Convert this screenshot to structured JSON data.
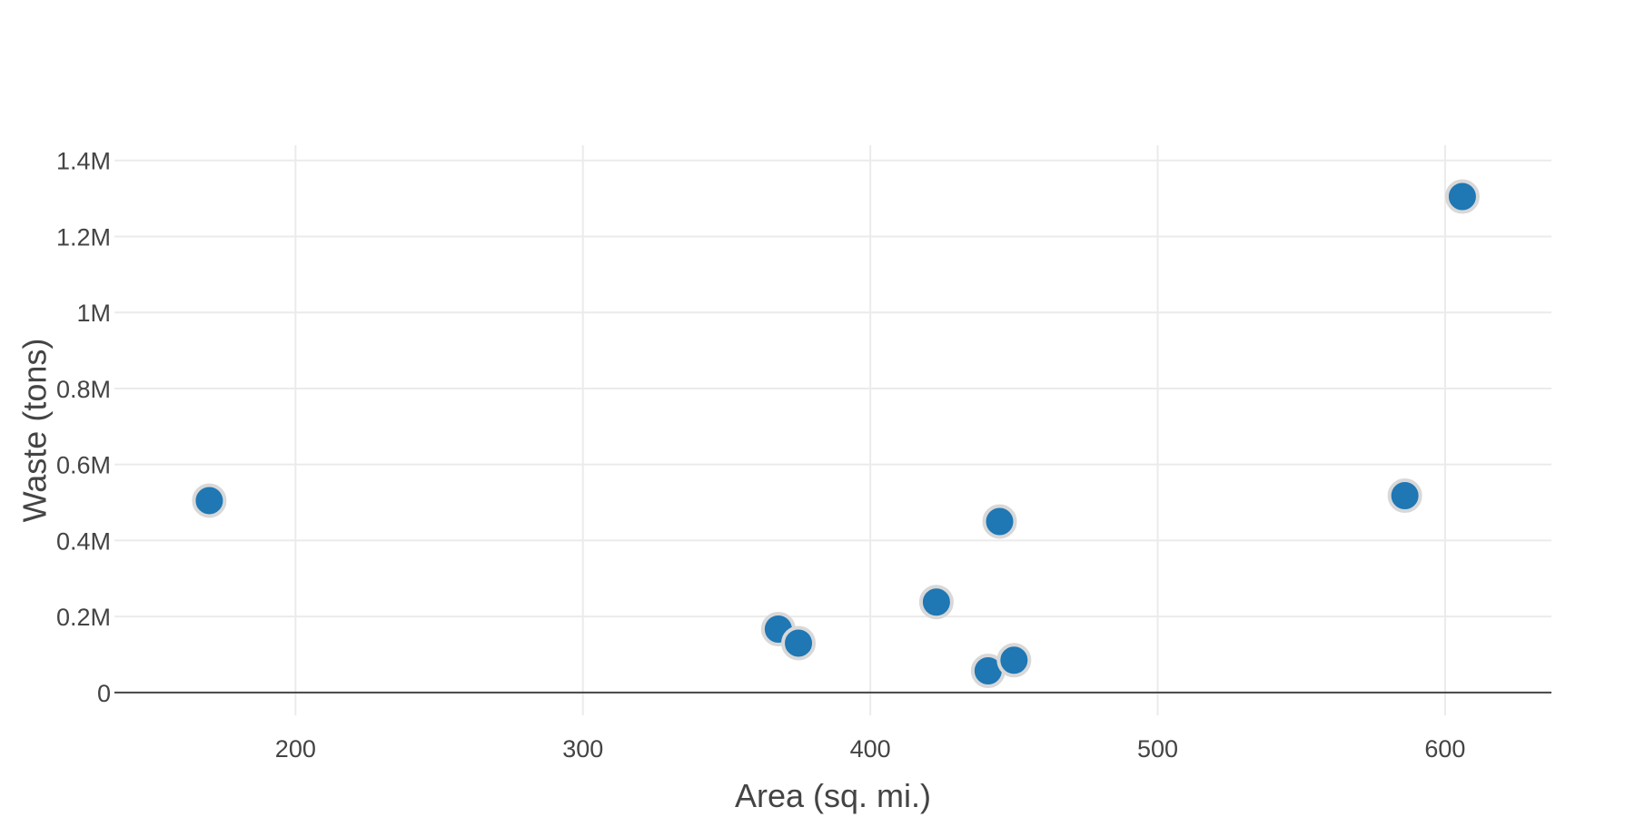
{
  "chart_data": {
    "type": "scatter",
    "title": "",
    "xlabel": "Area (sq. mi.)",
    "ylabel": "Waste (tons)",
    "xlim": [
      137,
      637
    ],
    "ylim": [
      -60000,
      1440000
    ],
    "x_ticks": [
      200,
      300,
      400,
      500,
      600
    ],
    "x_tick_labels": [
      "200",
      "300",
      "400",
      "500",
      "600"
    ],
    "y_ticks": [
      0,
      200000,
      400000,
      600000,
      800000,
      1000000,
      1200000,
      1400000
    ],
    "y_tick_labels": [
      "0",
      "0.2M",
      "0.4M",
      "0.6M",
      "0.8M",
      "1M",
      "1.2M",
      "1.4M"
    ],
    "grid": true,
    "legend": "none",
    "marker_color": "#1f77b4",
    "marker_outline_color": "#d8d8d8",
    "points": [
      {
        "x": 170,
        "y": 505000
      },
      {
        "x": 368,
        "y": 167000
      },
      {
        "x": 375,
        "y": 130000
      },
      {
        "x": 423,
        "y": 238000
      },
      {
        "x": 441,
        "y": 57000
      },
      {
        "x": 445,
        "y": 450000
      },
      {
        "x": 450,
        "y": 85000
      },
      {
        "x": 586,
        "y": 518000
      },
      {
        "x": 606,
        "y": 1305000
      }
    ]
  }
}
